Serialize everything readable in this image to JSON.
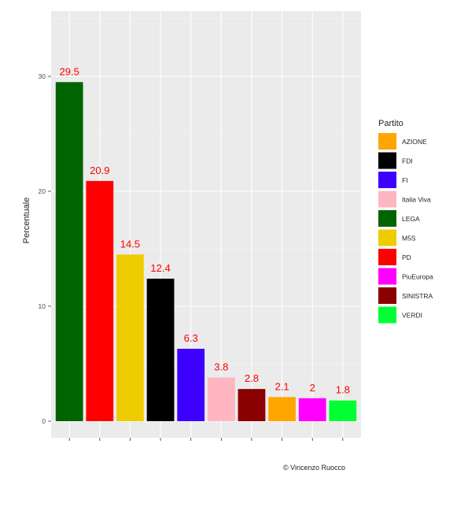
{
  "chart_data": {
    "type": "bar",
    "categories": [
      "LEGA",
      "PD",
      "M5S",
      "FDI",
      "FI",
      "Italia Viva",
      "SINISTRA",
      "AZIONE",
      "PiuEuropa",
      "VERDI"
    ],
    "values": [
      29.5,
      20.9,
      14.5,
      12.4,
      6.3,
      3.8,
      2.8,
      2.1,
      2,
      1.8
    ],
    "value_labels": [
      "29.5",
      "20.9",
      "14.5",
      "12.4",
      "6.3",
      "3.8",
      "2.8",
      "2.1",
      "2",
      "1.8"
    ],
    "bar_colors": [
      "#006400",
      "#ff0000",
      "#eecc00",
      "#000000",
      "#3d00ff",
      "#ffb6c1",
      "#8b0000",
      "#ffa500",
      "#ff00ff",
      "#00ff33"
    ],
    "ylabel": "Percentuale",
    "xlabel": "",
    "ylim": [
      0,
      35
    ],
    "yticks": [
      0,
      10,
      20,
      30
    ],
    "grid": true,
    "legend": {
      "title": "Partito",
      "placement": "right",
      "entries": [
        {
          "label": "AZIONE",
          "color": "#ffa500"
        },
        {
          "label": "FDI",
          "color": "#000000"
        },
        {
          "label": "FI",
          "color": "#3d00ff"
        },
        {
          "label": "Italia Viva",
          "color": "#ffb6c1"
        },
        {
          "label": "LEGA",
          "color": "#006400"
        },
        {
          "label": "M5S",
          "color": "#eecc00"
        },
        {
          "label": "PD",
          "color": "#ff0000"
        },
        {
          "label": "PiuEuropa",
          "color": "#ff00ff"
        },
        {
          "label": "SINISTRA",
          "color": "#8b0000"
        },
        {
          "label": "VERDI",
          "color": "#00ff33"
        }
      ]
    }
  },
  "caption": "© Vincenzo Ruocco"
}
